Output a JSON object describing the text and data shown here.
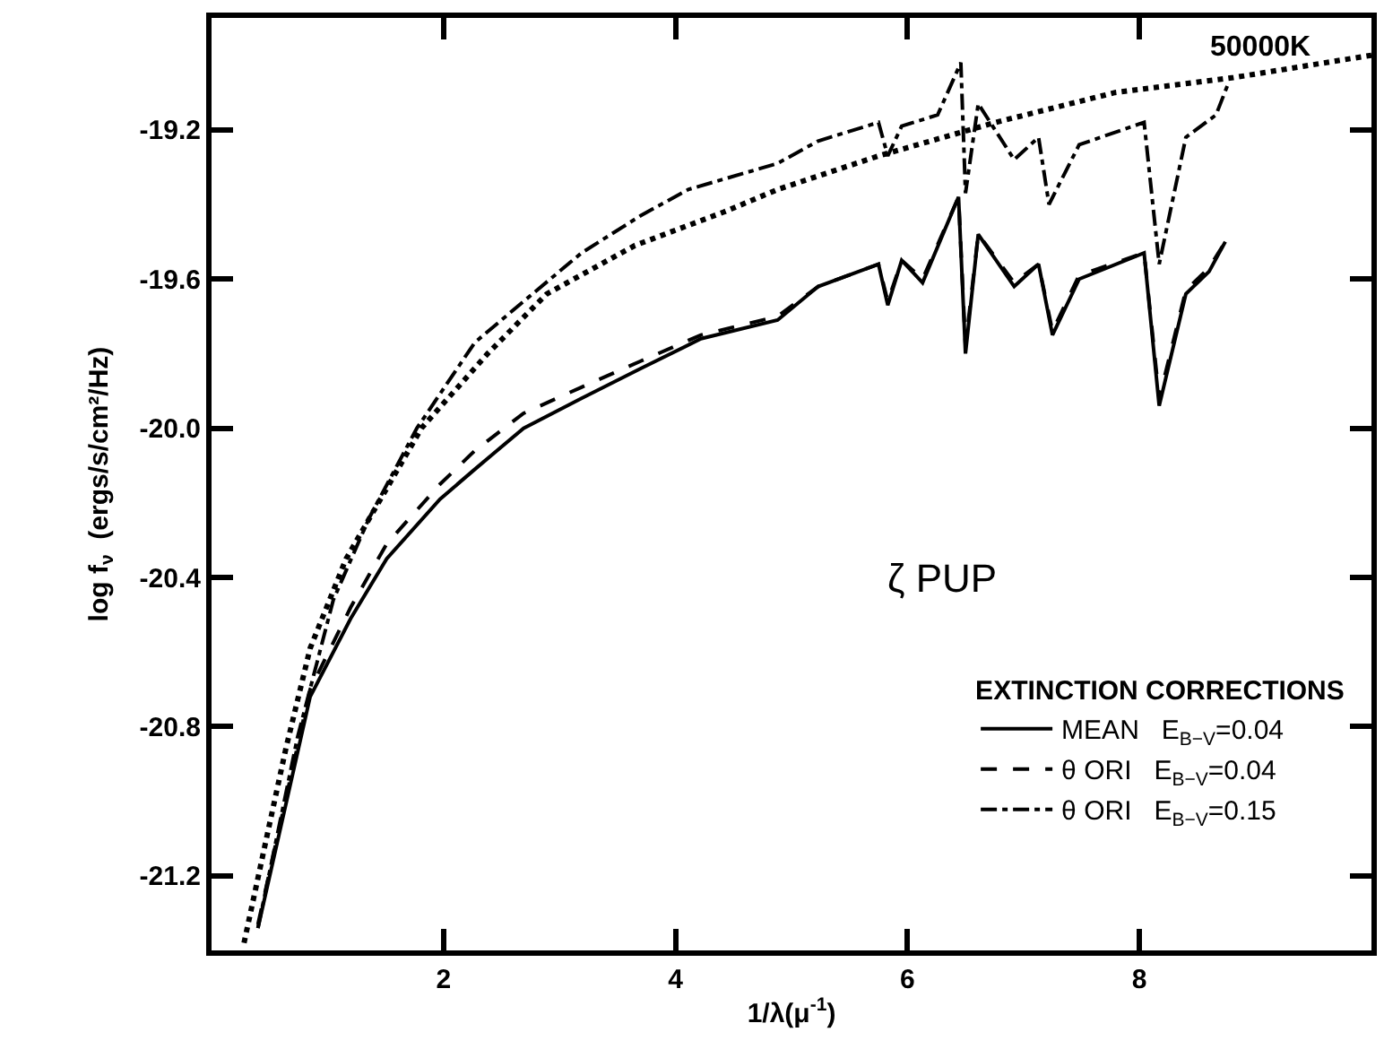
{
  "chart_data": {
    "type": "line",
    "xlabel": "1/λ(μ$^{-1}$)",
    "ylabel": "log f$_{ν}$  (ergs/s/cm²/Hz)",
    "legend_title": "EXTINCTION CORRECTIONS",
    "xlim": [
      0,
      10
    ],
    "ylim": [
      -21.4,
      -18.9
    ],
    "xticks": [
      2,
      4,
      6,
      8
    ],
    "yticks": [
      {
        "value": -21.2,
        "label": "-21.2"
      },
      {
        "value": -20.8,
        "label": "-20.8"
      },
      {
        "value": -20.4,
        "label": "-20.4"
      },
      {
        "value": -20.0,
        "label": "-20.0"
      },
      {
        "value": -19.6,
        "label": "-19.6"
      },
      {
        "value": -19.2,
        "label": "-19.2"
      }
    ],
    "legend": "bottom right",
    "marker": "none",
    "annotations": [
      "ζ PUP",
      {
        "text": "50000K",
        "x": 9.5,
        "y": -19.03
      }
    ],
    "series": [
      {
        "name": "MEAN   E$_{B−V}$=0.04",
        "color": "#000000",
        "line_style": "solid",
        "x": [
          0.4,
          0.85,
          1.2,
          1.51,
          1.97,
          2.27,
          2.69,
          3.19,
          3.7,
          4.22,
          4.88,
          5.23,
          5.75,
          5.83,
          5.95,
          6.13,
          6.44,
          6.5,
          6.61,
          6.92,
          7.13,
          7.25,
          7.48,
          8.04,
          8.17,
          8.4,
          8.6,
          8.74
        ],
        "values": [
          -21.34,
          -20.72,
          -20.51,
          -20.35,
          -20.19,
          -20.11,
          -20.0,
          -19.92,
          -19.84,
          -19.76,
          -19.71,
          -19.62,
          -19.56,
          -19.67,
          -19.55,
          -19.61,
          -19.38,
          -19.8,
          -19.48,
          -19.62,
          -19.56,
          -19.75,
          -19.6,
          -19.53,
          -19.94,
          -19.64,
          -19.58,
          -19.5
        ]
      },
      {
        "name": "θ ORI   E$_{B−V}$=0.04",
        "color": "#000000",
        "line_style": "dashed",
        "x": [
          0.4,
          0.85,
          1.2,
          1.51,
          1.97,
          2.27,
          2.69,
          3.19,
          3.7,
          4.22,
          4.88,
          5.23,
          5.75,
          5.83,
          5.95,
          6.13,
          6.44,
          6.5,
          6.61,
          6.92,
          7.13,
          7.25,
          7.48,
          8.04,
          8.17,
          8.4,
          8.6,
          8.74
        ],
        "values": [
          -21.33,
          -20.7,
          -20.48,
          -20.31,
          -20.15,
          -20.06,
          -19.96,
          -19.89,
          -19.82,
          -19.75,
          -19.7,
          -19.62,
          -19.56,
          -19.66,
          -19.55,
          -19.6,
          -19.38,
          -19.78,
          -19.48,
          -19.61,
          -19.56,
          -19.74,
          -19.59,
          -19.53,
          -19.92,
          -19.63,
          -19.57,
          -19.5
        ]
      },
      {
        "name": "θ ORI   E$_{B−V}$=0.15",
        "color": "#000000",
        "line_style": "dashdot",
        "x": [
          0.4,
          0.74,
          1.05,
          1.36,
          1.77,
          2.27,
          2.69,
          3.19,
          3.7,
          4.11,
          4.88,
          5.23,
          5.75,
          5.83,
          5.95,
          6.26,
          6.46,
          6.5,
          6.61,
          6.92,
          7.13,
          7.22,
          7.48,
          8.04,
          8.17,
          8.4,
          8.66,
          8.76
        ],
        "values": [
          -21.34,
          -20.83,
          -20.46,
          -20.24,
          -20.0,
          -19.77,
          -19.66,
          -19.53,
          -19.43,
          -19.36,
          -19.29,
          -19.23,
          -19.18,
          -19.27,
          -19.19,
          -19.16,
          -19.02,
          -19.37,
          -19.13,
          -19.28,
          -19.22,
          -19.4,
          -19.24,
          -19.18,
          -19.56,
          -19.22,
          -19.16,
          -19.08
        ]
      },
      {
        "color": "#000000",
        "line_style": "dotted",
        "x": [
          0.28,
          0.48,
          0.64,
          0.85,
          1.16,
          1.81,
          2.38,
          2.89,
          3.65,
          4.42,
          4.88,
          5.75,
          6.76,
          7.79,
          8.81,
          10.0
        ],
        "values": [
          -21.38,
          -21.09,
          -20.86,
          -20.59,
          -20.35,
          -20.0,
          -19.8,
          -19.64,
          -19.51,
          -19.42,
          -19.36,
          -19.27,
          -19.18,
          -19.1,
          -19.06,
          -19.0
        ]
      }
    ]
  }
}
